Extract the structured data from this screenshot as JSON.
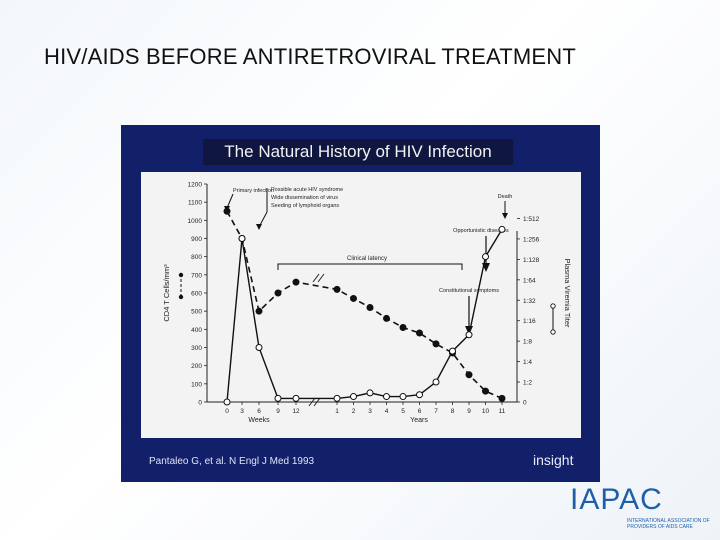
{
  "slide": {
    "title": "HIV/AIDS BEFORE ANTIRETROVIRAL TREATMENT",
    "panel_heading": "The Natural History of HIV Infection",
    "citation": "Pantaleo G, et al. N Engl J Med 1993",
    "insight_logo": "insight",
    "logo_text": "IAPAC",
    "logo_subtext": "INTERNATIONAL ASSOCIATION OF PROVIDERS OF AIDS CARE",
    "colors": {
      "panel_bg": "#12206a",
      "heading_bg": "#0f1640",
      "chart_bg": "#f3f3f3",
      "logo_blue": "#1f5fa8",
      "logo_red": "#c0282d"
    }
  },
  "chart_data": {
    "type": "line",
    "title": "",
    "left_axis": {
      "label": "CD4 T Cells/mm³",
      "ticks": [
        "0",
        "100",
        "200",
        "300",
        "400",
        "500",
        "600",
        "700",
        "800",
        "900",
        "1000",
        "1100",
        "1200"
      ],
      "ylim": [
        0,
        1200
      ]
    },
    "right_axis": {
      "label": "Plasma Viremia Titer",
      "ticks": [
        "0",
        "1:2",
        "1:4",
        "1:8",
        "1:16",
        "1:32",
        "1:64",
        "1:128",
        "1:256",
        "1:512"
      ]
    },
    "x_axis": {
      "weeks_label": "Weeks",
      "years_label": "Years",
      "weeks_ticks": [
        "0",
        "3",
        "6",
        "9",
        "12"
      ],
      "years_ticks": [
        "1",
        "2",
        "3",
        "4",
        "5",
        "6",
        "7",
        "8",
        "9",
        "10",
        "11"
      ]
    },
    "series": [
      {
        "name": "CD4",
        "axis": "left",
        "style": "dashed-filled",
        "points": [
          {
            "t": "0w",
            "value": 1050
          },
          {
            "t": "3w",
            "value": 900
          },
          {
            "t": "6w",
            "value": 500
          },
          {
            "t": "9w",
            "value": 600
          },
          {
            "t": "12w",
            "value": 660
          },
          {
            "t": "1y",
            "value": 620
          },
          {
            "t": "2y",
            "value": 570
          },
          {
            "t": "3y",
            "value": 520
          },
          {
            "t": "4y",
            "value": 460
          },
          {
            "t": "5y",
            "value": 410
          },
          {
            "t": "6y",
            "value": 380
          },
          {
            "t": "7y",
            "value": 320
          },
          {
            "t": "8y",
            "value": 270
          },
          {
            "t": "9y",
            "value": 150
          },
          {
            "t": "10y",
            "value": 60
          },
          {
            "t": "11y",
            "value": 20
          }
        ]
      },
      {
        "name": "Viremia",
        "axis": "right",
        "style": "solid-open",
        "points": [
          {
            "t": "0w",
            "value": 0
          },
          {
            "t": "3w",
            "value": 900
          },
          {
            "t": "6w",
            "value": 300
          },
          {
            "t": "9w",
            "value": 20
          },
          {
            "t": "12w",
            "value": 20
          },
          {
            "t": "1y",
            "value": 20
          },
          {
            "t": "2y",
            "value": 30
          },
          {
            "t": "3y",
            "value": 50
          },
          {
            "t": "4y",
            "value": 30
          },
          {
            "t": "5y",
            "value": 30
          },
          {
            "t": "6y",
            "value": 40
          },
          {
            "t": "7y",
            "value": 110
          },
          {
            "t": "8y",
            "value": 280
          },
          {
            "t": "9y",
            "value": 370
          },
          {
            "t": "10y",
            "value": 800
          },
          {
            "t": "11y",
            "value": 950
          }
        ]
      }
    ],
    "annotations": [
      {
        "text": "Primary infection",
        "at": "3w"
      },
      {
        "text": "Possible acute HIV syndrome",
        "at": "6w"
      },
      {
        "text": "Wide dissemination of virus",
        "at": "6w"
      },
      {
        "text": "Seeding of lymphoid organs",
        "at": "6w"
      },
      {
        "text": "Clinical latency",
        "span": [
          "9w",
          "8y"
        ]
      },
      {
        "text": "Constitutional symptoms",
        "at": "8y"
      },
      {
        "text": "Opportunistic diseases",
        "at": "10y"
      },
      {
        "text": "Death",
        "at": "11y"
      }
    ]
  }
}
